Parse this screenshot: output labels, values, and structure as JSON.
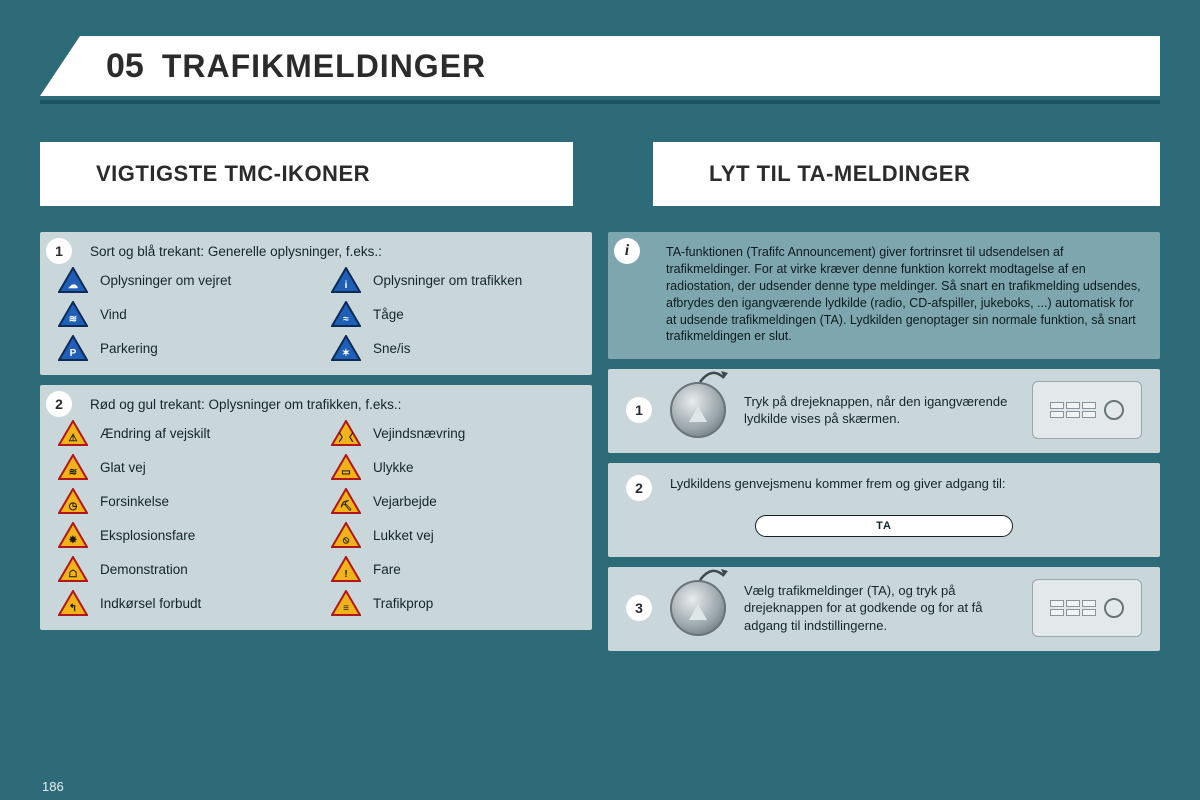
{
  "colors": {
    "page_bg": "#2d6b78",
    "box_bg": "#cad7da",
    "info_bg": "#7ea6ae",
    "text": "#13262b",
    "title_text": "#2b2b2b",
    "accent": "#1c5562",
    "blue_tri_fill": "#1f5fb8",
    "blue_tri_border": "#0c2b56",
    "warn_tri_fill": "#f2b21a",
    "warn_tri_border": "#b01717"
  },
  "header": {
    "section_number": "05",
    "title": "TRAFIKMELDINGER"
  },
  "left_section_title": "VIGTIGSTE TMC-IKONER",
  "right_section_title": "LYT TIL TA-MELDINGER",
  "left_boxes": [
    {
      "badge": "1",
      "intro": "Sort og blå trekant: Generelle oplysninger, f.eks.:",
      "triangle_style": "blue",
      "items_col1": [
        {
          "glyph": "☁",
          "label": "Oplysninger om vejret"
        },
        {
          "glyph": "≋",
          "label": "Vind"
        },
        {
          "glyph": "P",
          "label": "Parkering"
        }
      ],
      "items_col2": [
        {
          "glyph": "i",
          "label": "Oplysninger om trafikken"
        },
        {
          "glyph": "≈",
          "label": "Tåge"
        },
        {
          "glyph": "✶",
          "label": "Sne/is"
        }
      ]
    },
    {
      "badge": "2",
      "intro": "Rød og gul trekant: Oplysninger om trafikken, f.eks.:",
      "triangle_style": "warn",
      "items_col1": [
        {
          "glyph": "⚠",
          "label": "Ændring af vejskilt"
        },
        {
          "glyph": "≋",
          "label": "Glat vej"
        },
        {
          "glyph": "◷",
          "label": "Forsinkelse"
        },
        {
          "glyph": "✸",
          "label": "Eksplosionsfare"
        },
        {
          "glyph": "☖",
          "label": "Demonstration"
        },
        {
          "glyph": "↰",
          "label": "Indkørsel forbudt"
        }
      ],
      "items_col2": [
        {
          "glyph": "〉〈",
          "label": "Vejindsnævring"
        },
        {
          "glyph": "▭",
          "label": "Ulykke"
        },
        {
          "glyph": "⛏",
          "label": "Vejarbejde"
        },
        {
          "glyph": "⦸",
          "label": "Lukket vej"
        },
        {
          "glyph": "!",
          "label": "Fare"
        },
        {
          "glyph": "≡",
          "label": "Trafikprop"
        }
      ]
    }
  ],
  "right": {
    "info": {
      "badge": "i",
      "text": "TA-funktionen (Trafifc Announcement) giver fortrinsret til udsendelsen af trafikmeldinger. For at virke kræver denne funktion korrekt modtagelse af en radiostation, der udsender denne type meldinger. Så snart en trafikmelding udsendes, afbrydes den igangværende lydkilde (radio, CD-afspiller, jukeboks, ...) automatisk for at udsende trafikmeldingen (TA). Lydkilden genoptager sin normale funktion, så snart trafikmeldingen er slut."
    },
    "steps": [
      {
        "badge": "1",
        "has_knob": true,
        "has_radio": true,
        "text": "Tryk på drejeknappen, når den igangværende lydkilde vises på skærmen."
      },
      {
        "badge": "2",
        "has_knob": false,
        "has_radio": false,
        "text": "Lydkildens genvejsmenu kommer frem og giver adgang til:",
        "pill": "TA"
      },
      {
        "badge": "3",
        "has_knob": true,
        "has_radio": true,
        "text": "Vælg trafikmeldinger (TA), og tryk på drejeknappen for at godkende og for at få adgang til indstillingerne."
      }
    ]
  },
  "page_number": "186"
}
